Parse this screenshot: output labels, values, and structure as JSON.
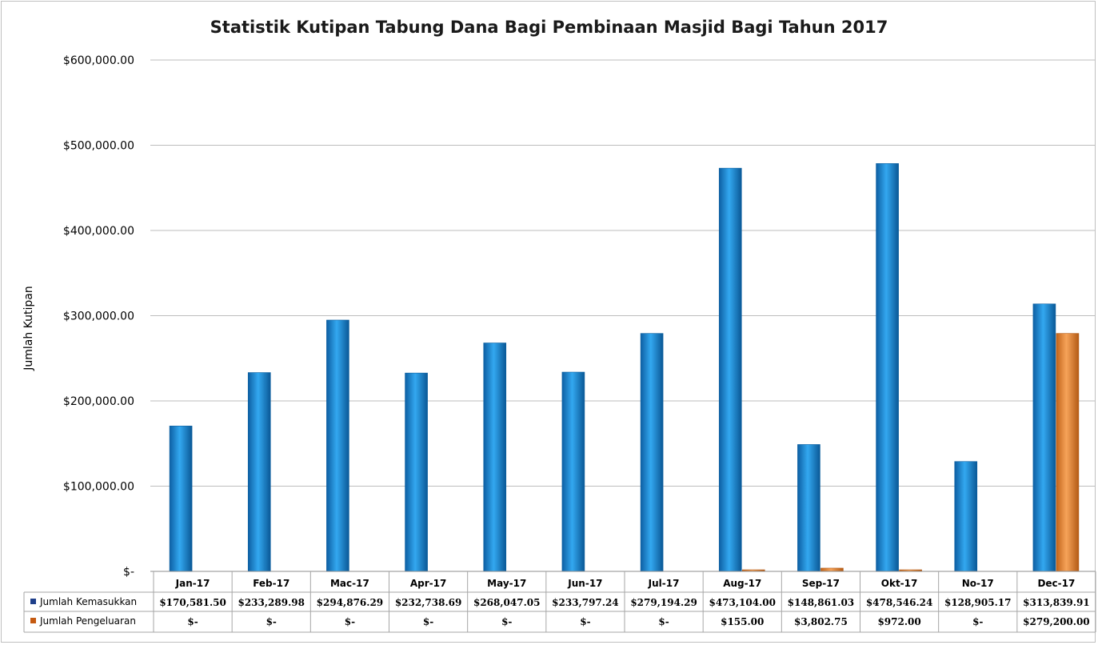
{
  "chart_data": {
    "type": "bar",
    "title": "Statistik Kutipan Tabung Dana Bagi Pembinaan Masjid Bagi Tahun 2017",
    "ylabel": "Jumlah Kutipan",
    "xlabel": "",
    "ylim": [
      0,
      600000
    ],
    "yticks": [
      0,
      100000,
      200000,
      300000,
      400000,
      500000,
      600000
    ],
    "ytick_labels": [
      "$-",
      "$100,000.00",
      "$200,000.00",
      "$300,000.00",
      "$400,000.00",
      "$500,000.00",
      "$600,000.00"
    ],
    "grid": true,
    "legend_placement": "data-table",
    "categories": [
      "Jan-17",
      "Feb-17",
      "Mac-17",
      "Apr-17",
      "May-17",
      "Jun-17",
      "Jul-17",
      "Aug-17",
      "Sep-17",
      "Okt-17",
      "No-17",
      "Dec-17"
    ],
    "series": [
      {
        "name": "Jumlah Kemasukkan",
        "color": "#1b8bd6",
        "values": [
          170581.5,
          233289.98,
          294876.29,
          232738.69,
          268047.05,
          233797.24,
          279194.29,
          473104.0,
          148861.03,
          478546.24,
          128905.17,
          313839.91
        ],
        "labels": [
          "$170,581.50",
          "$233,289.98",
          "$294,876.29",
          "$232,738.69",
          "$268,047.05",
          "$233,797.24",
          "$279,194.29",
          "$473,104.00",
          "$148,861.03",
          "$478,546.24",
          "$128,905.17",
          "$313,839.91"
        ]
      },
      {
        "name": "Jumlah Pengeluaran",
        "color": "#e8822a",
        "values": [
          0,
          0,
          0,
          0,
          0,
          0,
          0,
          155.0,
          3802.75,
          972.0,
          0,
          279200.0
        ],
        "labels": [
          "$-",
          "$-",
          "$-",
          "$-",
          "$-",
          "$-",
          "$-",
          "$155.00",
          "$3,802.75",
          "$972.00",
          "$-",
          "$279,200.00"
        ]
      }
    ]
  }
}
